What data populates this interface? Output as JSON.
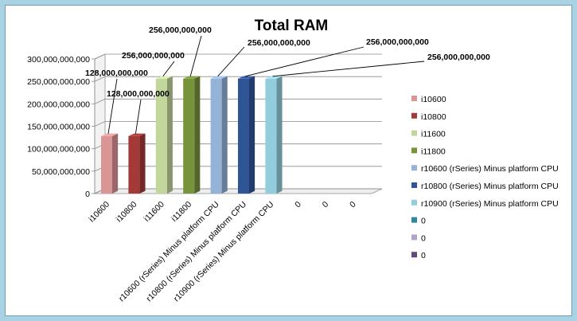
{
  "chart_data": {
    "type": "bar",
    "title": "Total RAM",
    "xlabel": "",
    "ylabel": "",
    "ylim": [
      0,
      300000000000
    ],
    "y_ticks": [
      "0",
      "50,000,000,000",
      "100,000,000,000",
      "150,000,000,000",
      "200,000,000,000",
      "250,000,000,000",
      "300,000,000,000"
    ],
    "grid": true,
    "legend_position": "right",
    "three_d": true,
    "categories": [
      "i10600",
      "i10800",
      "i11600",
      "i11800",
      "r10600 (rSeries) Minus platform CPU",
      "r10800 (rSeries) Minus platform CPU",
      "r10900 (rSeries) Minus platform CPU",
      "0",
      "0",
      "0"
    ],
    "values": [
      128000000000,
      128000000000,
      256000000000,
      256000000000,
      256000000000,
      256000000000,
      256000000000,
      0,
      0,
      0
    ],
    "data_labels": [
      "128,000,000,000",
      "128,000,000,000",
      "256,000,000,000",
      "256,000,000,000",
      "256,000,000,000",
      "256,000,000,000",
      "256,000,000,000",
      "",
      "",
      ""
    ],
    "colors": [
      "#d99694",
      "#a33a37",
      "#c3d69b",
      "#77933c",
      "#95b3d7",
      "#2f5597",
      "#92cddc",
      "#31859c",
      "#b3a2c7",
      "#604a7b"
    ],
    "legend": [
      "i10600",
      "i10800",
      "i11600",
      "i11800",
      "r10600 (rSeries) Minus platform CPU",
      "r10800 (rSeries) Minus platform CPU",
      "r10900 (rSeries) Minus platform CPU",
      "0",
      "0",
      "0"
    ]
  }
}
